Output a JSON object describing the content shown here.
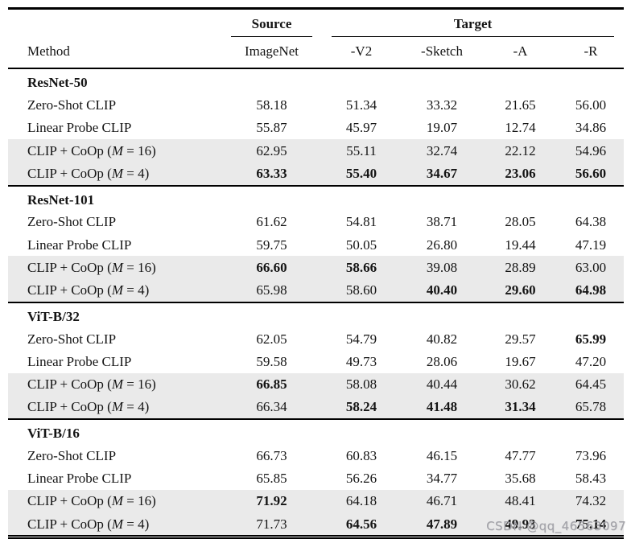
{
  "table": {
    "header": {
      "method_label": "Method",
      "groups": [
        {
          "label": "Source"
        },
        {
          "label": "Target"
        }
      ],
      "columns": [
        "ImageNet",
        "-V2",
        "-Sketch",
        "-A",
        "-R"
      ]
    },
    "sections": [
      {
        "name": "ResNet-50",
        "rows": [
          {
            "method": [
              {
                "t": "Zero-Shot CLIP"
              }
            ],
            "shaded": false,
            "values": [
              {
                "v": "58.18"
              },
              {
                "v": "51.34"
              },
              {
                "v": "33.32"
              },
              {
                "v": "21.65"
              },
              {
                "v": "56.00"
              }
            ]
          },
          {
            "method": [
              {
                "t": "Linear Probe CLIP"
              }
            ],
            "shaded": false,
            "values": [
              {
                "v": "55.87"
              },
              {
                "v": "45.97"
              },
              {
                "v": "19.07"
              },
              {
                "v": "12.74"
              },
              {
                "v": "34.86"
              }
            ]
          },
          {
            "method": [
              {
                "t": "CLIP + CoOp ("
              },
              {
                "t": "M",
                "i": true
              },
              {
                "t": " = 16)"
              }
            ],
            "shaded": true,
            "values": [
              {
                "v": "62.95"
              },
              {
                "v": "55.11"
              },
              {
                "v": "32.74"
              },
              {
                "v": "22.12"
              },
              {
                "v": "54.96"
              }
            ]
          },
          {
            "method": [
              {
                "t": "CLIP + CoOp ("
              },
              {
                "t": "M",
                "i": true
              },
              {
                "t": " = 4)"
              }
            ],
            "shaded": true,
            "values": [
              {
                "v": "63.33",
                "b": true
              },
              {
                "v": "55.40",
                "b": true
              },
              {
                "v": "34.67",
                "b": true
              },
              {
                "v": "23.06",
                "b": true
              },
              {
                "v": "56.60",
                "b": true
              }
            ]
          }
        ]
      },
      {
        "name": "ResNet-101",
        "rows": [
          {
            "method": [
              {
                "t": "Zero-Shot CLIP"
              }
            ],
            "shaded": false,
            "values": [
              {
                "v": "61.62"
              },
              {
                "v": "54.81"
              },
              {
                "v": "38.71"
              },
              {
                "v": "28.05"
              },
              {
                "v": "64.38"
              }
            ]
          },
          {
            "method": [
              {
                "t": "Linear Probe CLIP"
              }
            ],
            "shaded": false,
            "values": [
              {
                "v": "59.75"
              },
              {
                "v": "50.05"
              },
              {
                "v": "26.80"
              },
              {
                "v": "19.44"
              },
              {
                "v": "47.19"
              }
            ]
          },
          {
            "method": [
              {
                "t": "CLIP + CoOp ("
              },
              {
                "t": "M",
                "i": true
              },
              {
                "t": " = 16)"
              }
            ],
            "shaded": true,
            "values": [
              {
                "v": "66.60",
                "b": true
              },
              {
                "v": "58.66",
                "b": true
              },
              {
                "v": "39.08"
              },
              {
                "v": "28.89"
              },
              {
                "v": "63.00"
              }
            ]
          },
          {
            "method": [
              {
                "t": "CLIP + CoOp ("
              },
              {
                "t": "M",
                "i": true
              },
              {
                "t": " = 4)"
              }
            ],
            "shaded": true,
            "values": [
              {
                "v": "65.98"
              },
              {
                "v": "58.60"
              },
              {
                "v": "40.40",
                "b": true
              },
              {
                "v": "29.60",
                "b": true
              },
              {
                "v": "64.98",
                "b": true
              }
            ]
          }
        ]
      },
      {
        "name": "ViT-B/32",
        "rows": [
          {
            "method": [
              {
                "t": "Zero-Shot CLIP"
              }
            ],
            "shaded": false,
            "values": [
              {
                "v": "62.05"
              },
              {
                "v": "54.79"
              },
              {
                "v": "40.82"
              },
              {
                "v": "29.57"
              },
              {
                "v": "65.99",
                "b": true
              }
            ]
          },
          {
            "method": [
              {
                "t": "Linear Probe CLIP"
              }
            ],
            "shaded": false,
            "values": [
              {
                "v": "59.58"
              },
              {
                "v": "49.73"
              },
              {
                "v": "28.06"
              },
              {
                "v": "19.67"
              },
              {
                "v": "47.20"
              }
            ]
          },
          {
            "method": [
              {
                "t": "CLIP + CoOp ("
              },
              {
                "t": "M",
                "i": true
              },
              {
                "t": " = 16)"
              }
            ],
            "shaded": true,
            "values": [
              {
                "v": "66.85",
                "b": true
              },
              {
                "v": "58.08"
              },
              {
                "v": "40.44"
              },
              {
                "v": "30.62"
              },
              {
                "v": "64.45"
              }
            ]
          },
          {
            "method": [
              {
                "t": "CLIP + CoOp ("
              },
              {
                "t": "M",
                "i": true
              },
              {
                "t": " = 4)"
              }
            ],
            "shaded": true,
            "values": [
              {
                "v": "66.34"
              },
              {
                "v": "58.24",
                "b": true
              },
              {
                "v": "41.48",
                "b": true
              },
              {
                "v": "31.34",
                "b": true
              },
              {
                "v": "65.78"
              }
            ]
          }
        ]
      },
      {
        "name": "ViT-B/16",
        "rows": [
          {
            "method": [
              {
                "t": "Zero-Shot CLIP"
              }
            ],
            "shaded": false,
            "values": [
              {
                "v": "66.73"
              },
              {
                "v": "60.83"
              },
              {
                "v": "46.15"
              },
              {
                "v": "47.77"
              },
              {
                "v": "73.96"
              }
            ]
          },
          {
            "method": [
              {
                "t": "Linear Probe CLIP"
              }
            ],
            "shaded": false,
            "values": [
              {
                "v": "65.85"
              },
              {
                "v": "56.26"
              },
              {
                "v": "34.77"
              },
              {
                "v": "35.68"
              },
              {
                "v": "58.43"
              }
            ]
          },
          {
            "method": [
              {
                "t": "CLIP + CoOp ("
              },
              {
                "t": "M",
                "i": true
              },
              {
                "t": " = 16)"
              }
            ],
            "shaded": true,
            "values": [
              {
                "v": "71.92",
                "b": true
              },
              {
                "v": "64.18"
              },
              {
                "v": "46.71"
              },
              {
                "v": "48.41"
              },
              {
                "v": "74.32"
              }
            ]
          },
          {
            "method": [
              {
                "t": "CLIP + CoOp ("
              },
              {
                "t": "M",
                "i": true
              },
              {
                "t": " = 4)"
              }
            ],
            "shaded": true,
            "values": [
              {
                "v": "71.73"
              },
              {
                "v": "64.56",
                "b": true
              },
              {
                "v": "47.89",
                "b": true
              },
              {
                "v": "49.93",
                "b": true
              },
              {
                "v": "75.14",
                "b": true
              }
            ]
          }
        ]
      }
    ]
  },
  "watermark": {
    "text": "CSDN @qq_46563097"
  },
  "colors": {
    "row_shade": "#eaeaea",
    "watermark": "rgba(158,158,165,0.9)",
    "rule": "#000000"
  }
}
